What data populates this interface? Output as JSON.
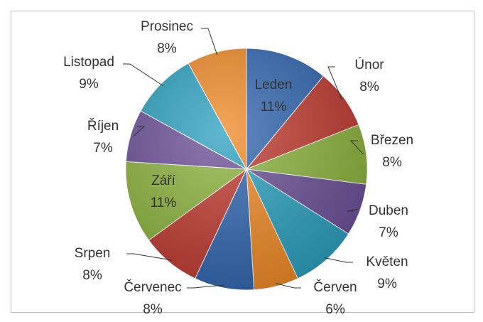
{
  "chart_data": {
    "type": "pie",
    "categories": [
      "Leden",
      "Únor",
      "Březen",
      "Duben",
      "Květen",
      "Červen",
      "Červenec",
      "Srpen",
      "Září",
      "Říjen",
      "Listopad",
      "Prosinec"
    ],
    "values": [
      11,
      8,
      8,
      7,
      9,
      6,
      8,
      8,
      11,
      7,
      9,
      8
    ],
    "value_labels": [
      "11%",
      "8%",
      "8%",
      "7%",
      "9%",
      "6%",
      "8%",
      "8%",
      "11%",
      "7%",
      "9%",
      "8%"
    ],
    "colors": [
      "#2f65b0",
      "#c0392f",
      "#8cb43c",
      "#6b4f98",
      "#2aa0c0",
      "#f08a24",
      "#2f65b0",
      "#c0392f",
      "#8cb43c",
      "#6b4f98",
      "#2aa0c0",
      "#f08a24"
    ]
  }
}
